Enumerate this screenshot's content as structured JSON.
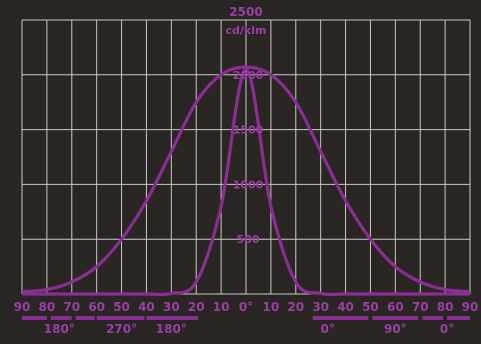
{
  "chart_data": {
    "type": "line",
    "title": "2500",
    "unit_label": "cd/klm",
    "x": [
      -90,
      -80,
      -70,
      -60,
      -50,
      -40,
      -30,
      -20,
      -10,
      0,
      10,
      20,
      30,
      40,
      50,
      60,
      70,
      80,
      90
    ],
    "x_tick_labels": [
      "90",
      "80",
      "70",
      "60",
      "50",
      "40",
      "30",
      "20",
      "10",
      "0°",
      "10",
      "20",
      "30",
      "40",
      "50",
      "60",
      "70",
      "80",
      "90"
    ],
    "y_tick_values": [
      500,
      1000,
      1500,
      2000
    ],
    "y_tick_labels": [
      "500",
      "1000",
      "1500",
      "2000"
    ],
    "ylim": [
      0,
      2500
    ],
    "xlim": [
      -90,
      90
    ],
    "grid": true,
    "series": [
      {
        "values": [
          20,
          40,
          110,
          250,
          500,
          850,
          1300,
          1750,
          2000,
          2070,
          2000,
          1750,
          1300,
          850,
          500,
          250,
          110,
          40,
          20
        ]
      },
      {
        "values": [
          0,
          0,
          0,
          0,
          0,
          0,
          5,
          110,
          800,
          2050,
          800,
          110,
          5,
          0,
          0,
          0,
          0,
          0,
          0
        ]
      }
    ],
    "plane_labels": {
      "left": [
        "180°",
        "270°",
        "180°"
      ],
      "right": [
        "0°",
        "90°",
        "0°"
      ]
    },
    "colors": {
      "background": "#2a2624",
      "grid": "#c9c9c9",
      "curve": "#8a2e93",
      "text": "#9b3fa3"
    }
  }
}
